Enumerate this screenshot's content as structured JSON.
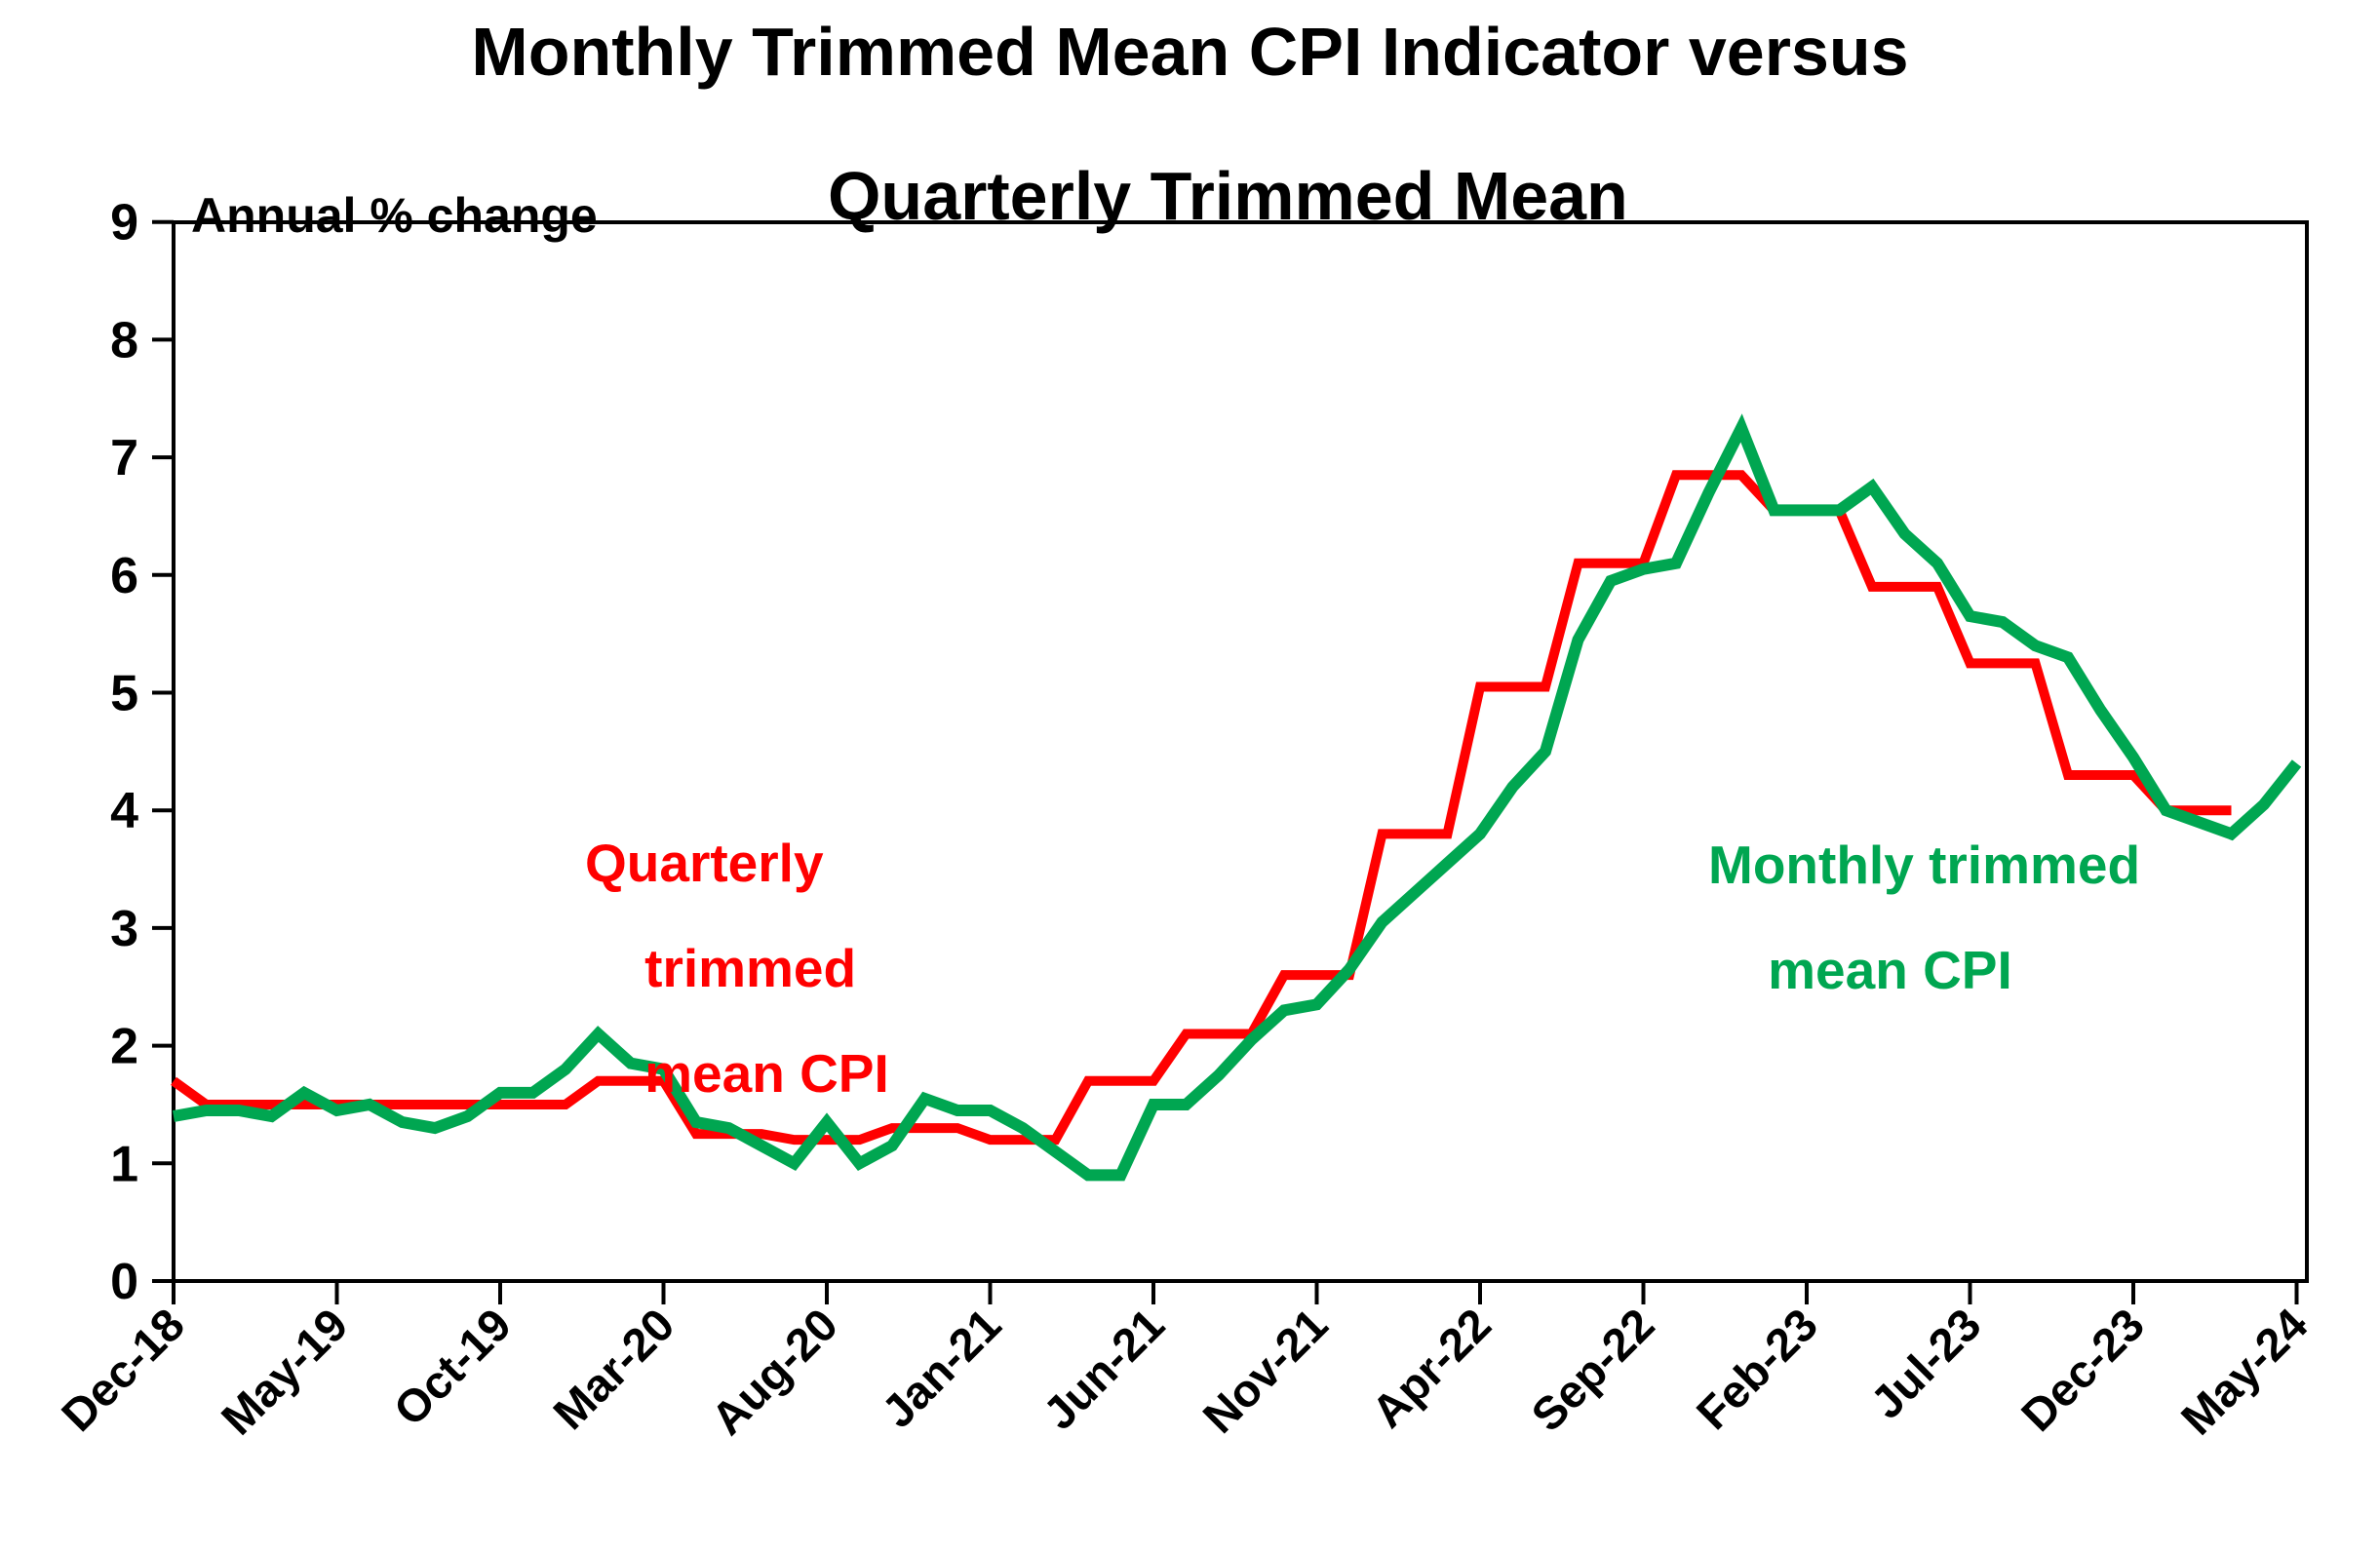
{
  "page": {
    "background": "#FFFFFF",
    "text_color": "#000000"
  },
  "title": {
    "line1": "Monthly Trimmed Mean CPI Indicator versus",
    "line2": "Quarterly Trimmed Mean"
  },
  "annotation": "Annual % change",
  "legend": {
    "quarterly": {
      "line1": "Quarterly",
      "line2": "trimmed",
      "line3": "mean CPI",
      "color": "#FF0000"
    },
    "monthly": {
      "line1": "Monthly trimmed",
      "line2": "mean CPI",
      "color": "#00A651"
    }
  },
  "chart_data": {
    "type": "line",
    "title": "Monthly Trimmed Mean CPI Indicator versus Quarterly Trimmed Mean",
    "ylabel": "Annual % change",
    "ylim": [
      0,
      9
    ],
    "y_ticks": [
      0,
      1,
      2,
      3,
      4,
      5,
      6,
      7,
      8,
      9
    ],
    "grid": false,
    "x_start": "Dec-18",
    "x_end": "May-24",
    "x_tick_every_months": 5,
    "x_tick_labels": [
      "Dec-18",
      "May-19",
      "Oct-19",
      "Mar-20",
      "Aug-20",
      "Jan-21",
      "Jun-21",
      "Nov-21",
      "Apr-22",
      "Sep-22",
      "Feb-23",
      "Jul-23",
      "Dec-23",
      "May-24"
    ],
    "series": [
      {
        "name": "Monthly trimmed mean CPI",
        "color": "#00A651",
        "stroke_width": 12,
        "frequency": "monthly",
        "first_month": "Dec-18",
        "values": [
          1.4,
          1.45,
          1.45,
          1.4,
          1.6,
          1.45,
          1.5,
          1.35,
          1.3,
          1.4,
          1.6,
          1.6,
          1.8,
          2.1,
          1.85,
          1.8,
          1.35,
          1.3,
          1.15,
          1.0,
          1.35,
          1.0,
          1.15,
          1.55,
          1.45,
          1.45,
          1.3,
          1.1,
          0.9,
          0.9,
          1.5,
          1.5,
          1.75,
          2.05,
          2.3,
          2.35,
          2.65,
          3.05,
          3.3,
          3.55,
          3.8,
          4.2,
          4.5,
          5.45,
          5.95,
          6.05,
          6.1,
          6.7,
          7.25,
          6.55,
          6.55,
          6.55,
          6.75,
          6.35,
          6.1,
          5.65,
          5.6,
          5.4,
          5.3,
          4.85,
          4.45,
          4.0,
          3.9,
          3.8,
          4.05,
          4.4
        ]
      },
      {
        "name": "Quarterly trimmed mean CPI",
        "color": "#FF0000",
        "stroke_width": 10,
        "frequency": "quarterly",
        "style": "step-hold-3-months",
        "quarter_end_months": [
          "Dec-18",
          "Mar-19",
          "Jun-19",
          "Sep-19",
          "Dec-19",
          "Mar-20",
          "Jun-20",
          "Sep-20",
          "Dec-20",
          "Mar-21",
          "Jun-21",
          "Sep-21",
          "Dec-21",
          "Mar-22",
          "Jun-22",
          "Sep-22",
          "Dec-22",
          "Mar-23",
          "Jun-23",
          "Sep-23",
          "Dec-23",
          "Mar-24"
        ],
        "values": [
          1.7,
          1.5,
          1.5,
          1.5,
          1.5,
          1.7,
          1.25,
          1.2,
          1.3,
          1.2,
          1.7,
          2.1,
          2.6,
          3.8,
          5.05,
          6.1,
          6.85,
          6.55,
          5.9,
          5.25,
          4.3,
          4.0
        ]
      }
    ]
  }
}
